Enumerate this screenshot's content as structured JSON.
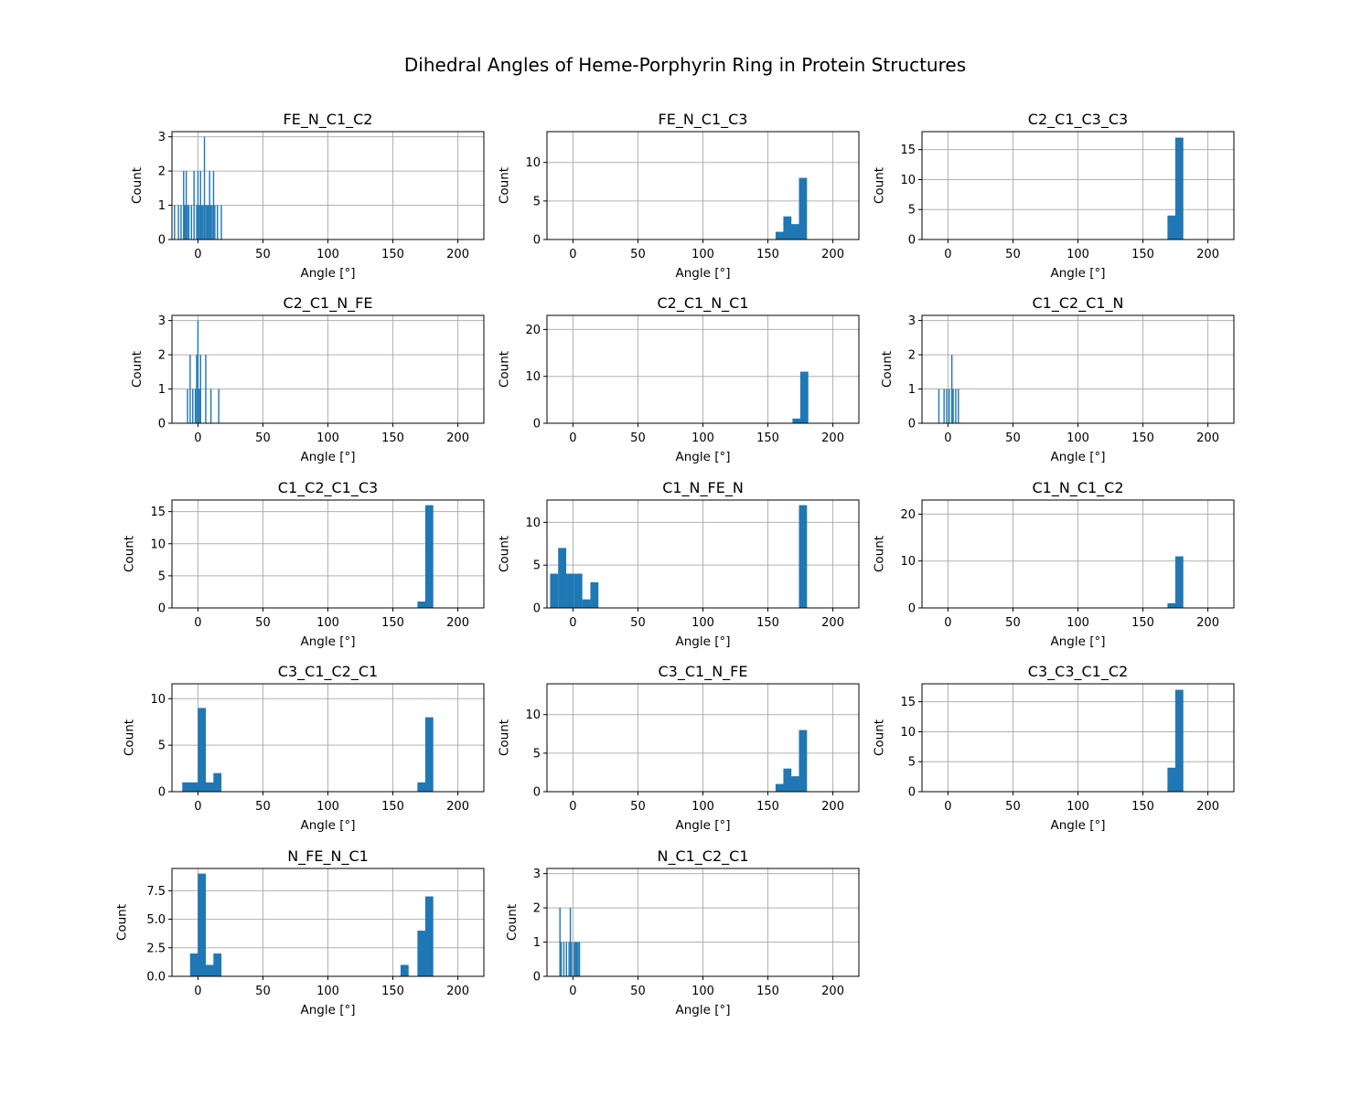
{
  "title": "Dihedral Angles of Heme-Porphyrin Ring in Protein Structures",
  "chart_data": [
    {
      "type": "bar",
      "title": "FE_N_C1_C2",
      "xlabel": "Angle [°]",
      "ylabel": "Count",
      "xlim": [
        -20,
        220
      ],
      "ylim": [
        0,
        3.15
      ],
      "xticks": [
        0,
        50,
        100,
        150,
        200
      ],
      "yticks": [
        0,
        1,
        2,
        3
      ],
      "bar_width": 1.0,
      "x": [
        -18,
        -15,
        -13,
        -11,
        -10,
        -9,
        -8,
        -7,
        -5,
        -3,
        -1,
        0,
        1,
        2,
        3,
        4,
        5,
        6,
        7,
        8,
        9,
        10,
        11,
        12,
        13,
        15,
        18
      ],
      "values": [
        1,
        1,
        1,
        2,
        1,
        2,
        1,
        1,
        1,
        2,
        1,
        2,
        1,
        2,
        1,
        1,
        3,
        1,
        1,
        1,
        2,
        1,
        1,
        2,
        1,
        1,
        1
      ]
    },
    {
      "type": "bar",
      "title": "FE_N_C1_C3",
      "xlabel": "Angle [°]",
      "ylabel": "Count",
      "xlim": [
        -20,
        220
      ],
      "ylim": [
        0,
        14
      ],
      "xticks": [
        0,
        50,
        100,
        150,
        200
      ],
      "yticks": [
        0,
        5,
        10
      ],
      "bar_width": 6.2,
      "x": [
        159,
        165,
        171,
        177
      ],
      "values": [
        1,
        3,
        2,
        8
      ]
    },
    {
      "type": "bar",
      "title": "C2_C1_C3_C3",
      "xlabel": "Angle [°]",
      "ylabel": "Count",
      "xlim": [
        -20,
        220
      ],
      "ylim": [
        0,
        18
      ],
      "xticks": [
        0,
        50,
        100,
        150,
        200
      ],
      "yticks": [
        0,
        5,
        10,
        15
      ],
      "bar_width": 6.2,
      "x": [
        172,
        178
      ],
      "values": [
        4,
        17
      ]
    },
    {
      "type": "bar",
      "title": "C2_C1_N_FE",
      "xlabel": "Angle [°]",
      "ylabel": "Count",
      "xlim": [
        -20,
        220
      ],
      "ylim": [
        0,
        3.15
      ],
      "xticks": [
        0,
        50,
        100,
        150,
        200
      ],
      "yticks": [
        0,
        1,
        2,
        3
      ],
      "bar_width": 1.0,
      "x": [
        -8,
        -6,
        -4,
        -2,
        -1,
        0,
        1,
        2,
        6,
        10,
        16
      ],
      "values": [
        1,
        2,
        1,
        1,
        2,
        3,
        1,
        2,
        2,
        1,
        1
      ]
    },
    {
      "type": "bar",
      "title": "C2_C1_N_C1",
      "xlabel": "Angle [°]",
      "ylabel": "Count",
      "xlim": [
        -20,
        220
      ],
      "ylim": [
        0,
        23
      ],
      "xticks": [
        0,
        50,
        100,
        150,
        200
      ],
      "yticks": [
        0,
        10,
        20
      ],
      "bar_width": 6.2,
      "x": [
        172,
        178
      ],
      "values": [
        1,
        11
      ]
    },
    {
      "type": "bar",
      "title": "C1_C2_C1_N",
      "xlabel": "Angle [°]",
      "ylabel": "Count",
      "xlim": [
        -20,
        220
      ],
      "ylim": [
        0,
        3.15
      ],
      "xticks": [
        0,
        50,
        100,
        150,
        200
      ],
      "yticks": [
        0,
        1,
        2,
        3
      ],
      "bar_width": 1.0,
      "x": [
        -7,
        -3,
        -1,
        1,
        3,
        4,
        6,
        8
      ],
      "values": [
        1,
        1,
        1,
        1,
        2,
        1,
        1,
        1
      ]
    },
    {
      "type": "bar",
      "title": "C1_C2_C1_C3",
      "xlabel": "Angle [°]",
      "ylabel": "Count",
      "xlim": [
        -20,
        220
      ],
      "ylim": [
        0,
        16.8
      ],
      "xticks": [
        0,
        50,
        100,
        150,
        200
      ],
      "yticks": [
        0,
        5,
        10,
        15
      ],
      "bar_width": 6.2,
      "x": [
        172,
        178
      ],
      "values": [
        1,
        16
      ]
    },
    {
      "type": "bar",
      "title": "C1_N_FE_N",
      "xlabel": "Angle [°]",
      "ylabel": "Count",
      "xlim": [
        -20,
        220
      ],
      "ylim": [
        0,
        12.6
      ],
      "xticks": [
        0,
        50,
        100,
        150,
        200
      ],
      "yticks": [
        0,
        5,
        10
      ],
      "bar_width": 6.2,
      "x": [
        -14.5,
        -8.3,
        -2.1,
        4.1,
        10.3,
        16.5,
        177
      ],
      "values": [
        4,
        7,
        4,
        4,
        1,
        3,
        12
      ]
    },
    {
      "type": "bar",
      "title": "C1_N_C1_C2",
      "xlabel": "Angle [°]",
      "ylabel": "Count",
      "xlim": [
        -20,
        220
      ],
      "ylim": [
        0,
        23
      ],
      "xticks": [
        0,
        50,
        100,
        150,
        200
      ],
      "yticks": [
        0,
        10,
        20
      ],
      "bar_width": 6.2,
      "x": [
        172,
        178
      ],
      "values": [
        1,
        11
      ]
    },
    {
      "type": "bar",
      "title": "C3_C1_C2_C1",
      "xlabel": "Angle [°]",
      "ylabel": "Count",
      "xlim": [
        -20,
        220
      ],
      "ylim": [
        0,
        11.6
      ],
      "xticks": [
        0,
        50,
        100,
        150,
        200
      ],
      "yticks": [
        0,
        5,
        10
      ],
      "bar_width": 6.2,
      "x": [
        -9,
        -3,
        3,
        9,
        15,
        172,
        178
      ],
      "values": [
        1,
        1,
        9,
        1,
        2,
        1,
        8
      ]
    },
    {
      "type": "bar",
      "title": "C3_C1_N_FE",
      "xlabel": "Angle [°]",
      "ylabel": "Count",
      "xlim": [
        -20,
        220
      ],
      "ylim": [
        0,
        14
      ],
      "xticks": [
        0,
        50,
        100,
        150,
        200
      ],
      "yticks": [
        0,
        5,
        10
      ],
      "bar_width": 6.2,
      "x": [
        159,
        165,
        171,
        177
      ],
      "values": [
        1,
        3,
        2,
        8
      ]
    },
    {
      "type": "bar",
      "title": "C3_C3_C1_C2",
      "xlabel": "Angle [°]",
      "ylabel": "Count",
      "xlim": [
        -20,
        220
      ],
      "ylim": [
        0,
        18
      ],
      "xticks": [
        0,
        50,
        100,
        150,
        200
      ],
      "yticks": [
        0,
        5,
        10,
        15
      ],
      "bar_width": 6.2,
      "x": [
        172,
        178
      ],
      "values": [
        4,
        17
      ]
    },
    {
      "type": "bar",
      "title": "N_FE_N_C1",
      "xlabel": "Angle [°]",
      "ylabel": "Count",
      "xlim": [
        -20,
        220
      ],
      "ylim": [
        0,
        9.45
      ],
      "xticks": [
        0,
        50,
        100,
        150,
        200
      ],
      "yticks": [
        0,
        2.5,
        5,
        7.5
      ],
      "ytick_labels": [
        "0.0",
        "2.5",
        "5.0",
        "7.5"
      ],
      "bar_width": 6.2,
      "x": [
        -3,
        3,
        9,
        15,
        159,
        172,
        178
      ],
      "values": [
        2,
        9,
        1,
        2,
        1,
        4,
        7
      ]
    },
    {
      "type": "bar",
      "title": "N_C1_C2_C1",
      "xlabel": "Angle [°]",
      "ylabel": "Count",
      "xlim": [
        -20,
        220
      ],
      "ylim": [
        0,
        3.15
      ],
      "xticks": [
        0,
        50,
        100,
        150,
        200
      ],
      "yticks": [
        0,
        1,
        2,
        3
      ],
      "bar_width": 1.0,
      "x": [
        -10,
        -9,
        -7,
        -5,
        -3,
        -2,
        -1,
        1,
        2,
        3,
        4,
        5
      ],
      "values": [
        2,
        1,
        1,
        1,
        1,
        2,
        1,
        1,
        1,
        1,
        1,
        1
      ]
    }
  ]
}
